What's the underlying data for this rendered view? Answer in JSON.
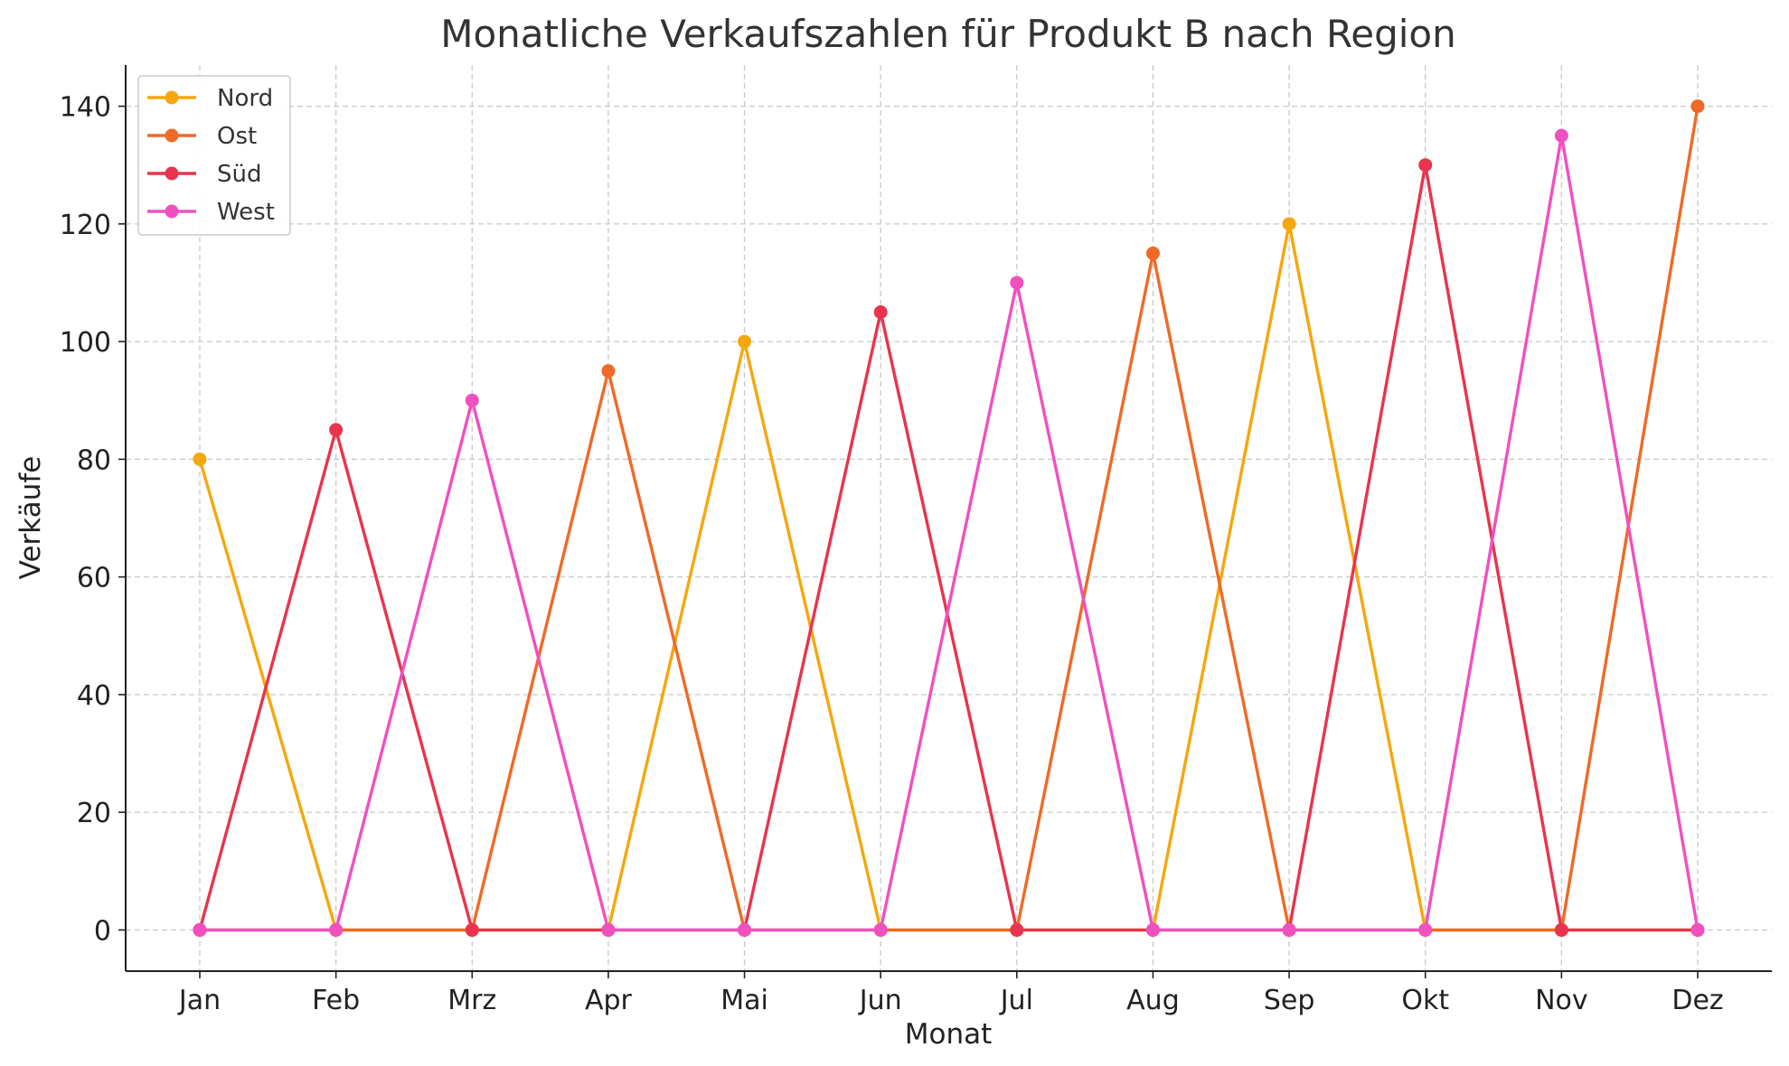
{
  "chart_data": {
    "type": "line",
    "title": "Monatliche Verkaufszahlen für Produkt B nach Region",
    "xlabel": "Monat",
    "ylabel": "Verkäufe",
    "categories": [
      "Jan",
      "Feb",
      "Mrz",
      "Apr",
      "Mai",
      "Jun",
      "Jul",
      "Aug",
      "Sep",
      "Okt",
      "Nov",
      "Dez"
    ],
    "ylim": [
      -7,
      147
    ],
    "yticks": [
      0,
      20,
      40,
      60,
      80,
      100,
      120,
      140
    ],
    "grid": true,
    "legend_position": "top-left",
    "series": [
      {
        "name": "Nord",
        "color": "#f5a70f",
        "values": [
          80,
          0,
          0,
          0,
          100,
          0,
          0,
          0,
          120,
          0,
          0,
          0
        ]
      },
      {
        "name": "Ost",
        "color": "#ef6a26",
        "values": [
          0,
          0,
          0,
          95,
          0,
          0,
          0,
          115,
          0,
          0,
          0,
          140
        ]
      },
      {
        "name": "Süd",
        "color": "#e8344e",
        "values": [
          0,
          85,
          0,
          0,
          0,
          105,
          0,
          0,
          0,
          130,
          0,
          0
        ]
      },
      {
        "name": "West",
        "color": "#f050c0",
        "values": [
          0,
          0,
          90,
          0,
          0,
          0,
          110,
          0,
          0,
          0,
          135,
          0
        ]
      }
    ]
  }
}
